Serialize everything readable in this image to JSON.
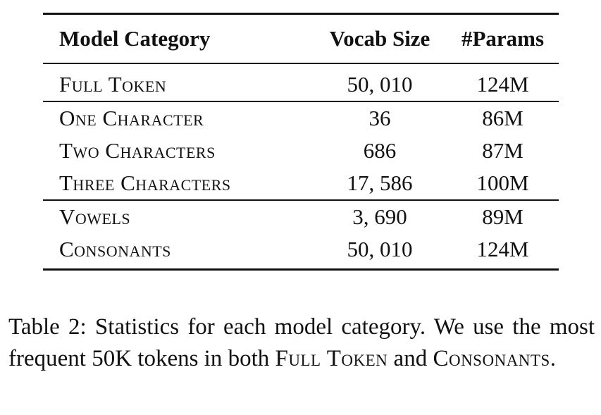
{
  "table": {
    "headers": [
      "Model Category",
      "Vocab Size",
      "#Params"
    ],
    "rows": [
      [
        "Full Token",
        "50, 010",
        "124M"
      ],
      [
        "One Character",
        "36",
        "86M"
      ],
      [
        "Two Characters",
        "686",
        "87M"
      ],
      [
        "Three Characters",
        "17, 586",
        "100M"
      ],
      [
        "Vowels",
        "3, 690",
        "89M"
      ],
      [
        "Consonants",
        "50, 010",
        "124M"
      ]
    ]
  },
  "caption": {
    "prefix": "Table 2: Statistics for each model category. We use the most frequent 50K tokens in both ",
    "term1": "Full Token",
    "middle": " and ",
    "term2": "Consonants",
    "suffix": "."
  }
}
